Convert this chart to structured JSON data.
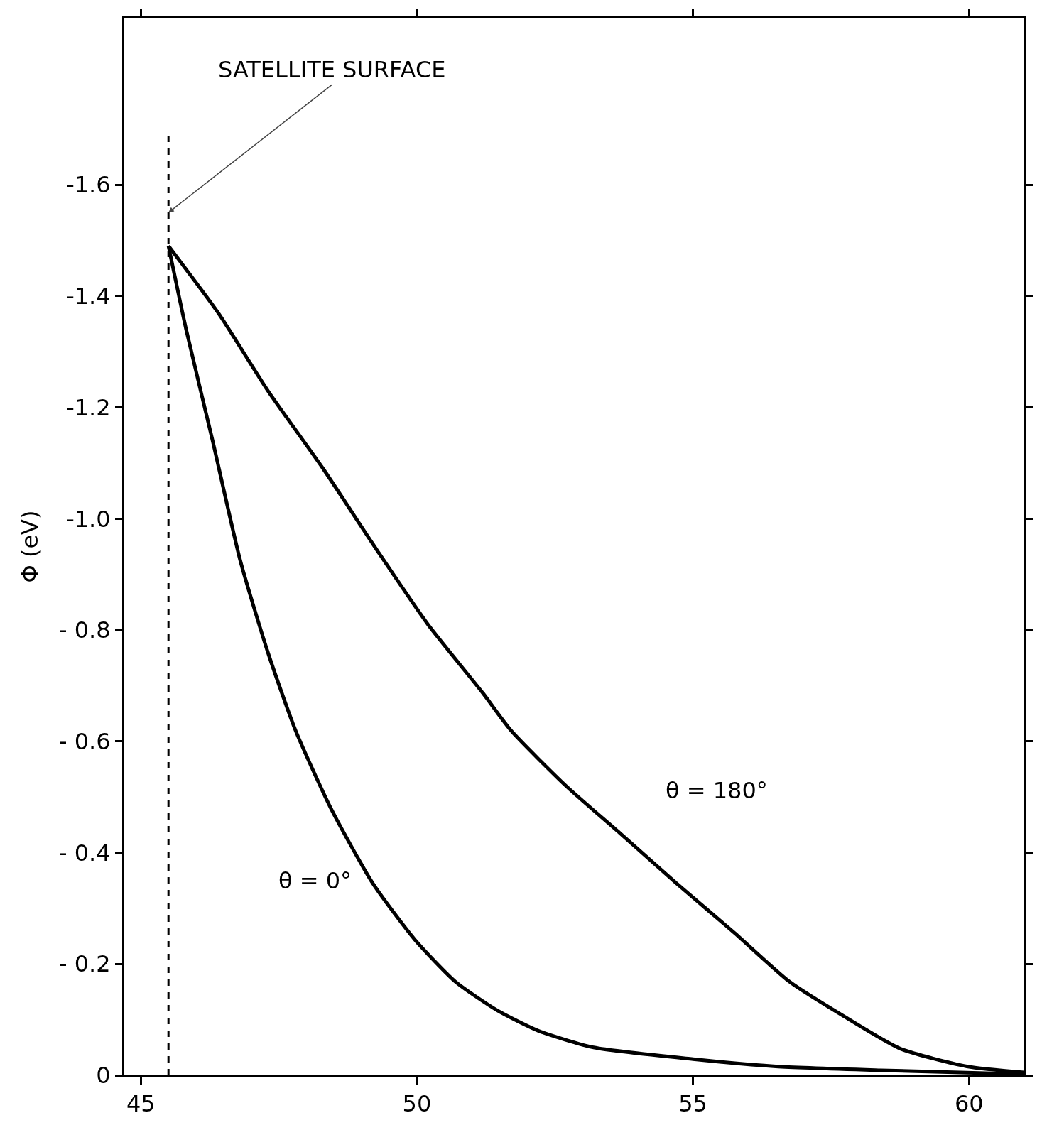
{
  "chart_data": {
    "type": "line",
    "ylabel": "Φ (eV)",
    "xlim": [
      44.7,
      61
    ],
    "xticks": [
      45,
      50,
      55,
      60
    ],
    "ylim": [
      0,
      -1.9
    ],
    "yticks": [
      0,
      {
        "value": -0.2,
        "label": "- 0.2"
      },
      {
        "value": -0.4,
        "label": "- 0.4"
      },
      {
        "value": -0.6,
        "label": "- 0.6"
      },
      {
        "value": -0.8,
        "label": "- 0.8"
      },
      {
        "value": -1.0,
        "label": "-1.0"
      },
      {
        "value": -1.2,
        "label": "-1.2"
      },
      {
        "value": -1.4,
        "label": "-1.4"
      },
      {
        "value": -1.6,
        "label": "-1.6"
      }
    ],
    "grid": false,
    "marker": "none",
    "line_style": "solid",
    "series": [
      {
        "color": "#000000",
        "x": [
          45.5,
          45.82,
          46.3,
          46.8,
          47.3,
          47.8,
          48.44,
          49.2,
          49.96,
          50.7,
          51.45,
          52.2,
          53.2,
          55,
          56.5,
          58.4,
          61
        ],
        "values": [
          -1.49,
          -1.34,
          -1.14,
          -0.925,
          -0.76,
          -0.62,
          -0.48,
          -0.345,
          -0.244,
          -0.168,
          -0.117,
          -0.08,
          -0.05,
          -0.029,
          -0.016,
          -0.009,
          -0.002
        ]
      },
      {
        "color": "#000000",
        "x": [
          45.5,
          46.4,
          47.3,
          48.3,
          49.3,
          50.2,
          51.2,
          51.7,
          52.7,
          53.7,
          54.7,
          55.75,
          56.75,
          57.75,
          58.75,
          59.96,
          61
        ],
        "values": [
          -1.49,
          -1.37,
          -1.23,
          -1.09,
          -0.94,
          -0.81,
          -0.686,
          -0.62,
          -0.52,
          -0.433,
          -0.345,
          -0.256,
          -0.168,
          -0.105,
          -0.048,
          -0.016,
          -0.005
        ]
      }
    ],
    "ref_lines": [
      {
        "axis": "x",
        "value": 45.5,
        "line_style": "dashed",
        "color": "#000000"
      }
    ],
    "annotations": [
      {
        "text": "SATELLITE SURFACE",
        "x": 45.5,
        "y": -1.55
      },
      "θ = 180°",
      "θ = 0°"
    ]
  }
}
